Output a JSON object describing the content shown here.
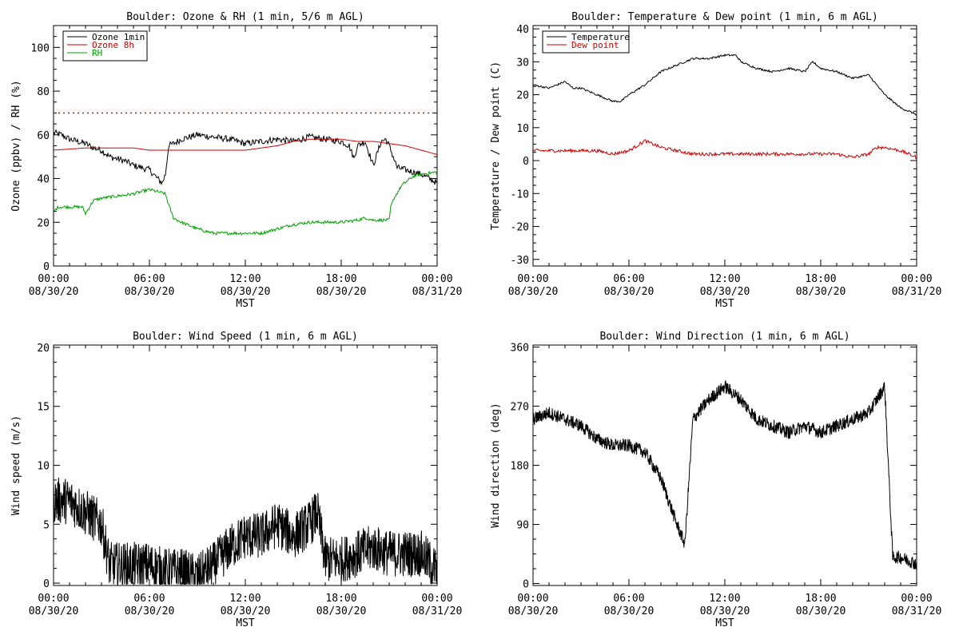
{
  "colors": {
    "black": "#000000",
    "red": "#cc0000",
    "green": "#00a000",
    "background": "#ffffff"
  },
  "chart_data": [
    {
      "type": "line",
      "title": "Boulder: Ozone & RH (1 min, 5/6 m AGL)",
      "xlabel": "MST",
      "ylabel": "Ozone (ppbv) / RH (%)",
      "xlim_hours": [
        0,
        24
      ],
      "ylim": [
        0,
        110
      ],
      "yticks": [
        0,
        20,
        40,
        60,
        80,
        100
      ],
      "xtick_labels": [
        {
          "h": 0,
          "time": "00:00",
          "date": "08/30/20"
        },
        {
          "h": 6,
          "time": "06:00",
          "date": "08/30/20"
        },
        {
          "h": 12,
          "time": "12:00",
          "date": "08/30/20"
        },
        {
          "h": 18,
          "time": "18:00",
          "date": "08/30/20"
        },
        {
          "h": 24,
          "time": "00:00",
          "date": "08/31/20"
        }
      ],
      "legend": {
        "position": "top-left"
      },
      "reference_line": {
        "value": 70,
        "style": "dotted",
        "color": "#cc0000"
      },
      "series": [
        {
          "name": "Ozone 1min",
          "color": "#000000",
          "noise": 1.5,
          "step_hours": 0.05,
          "x": [
            0,
            0.5,
            1,
            1.5,
            2,
            2.5,
            3,
            3.5,
            4,
            4.5,
            5,
            5.5,
            6,
            6.5,
            6.8,
            7,
            7.2,
            7.5,
            8,
            9,
            10,
            11,
            12,
            13,
            14,
            15,
            16,
            17,
            18,
            18.5,
            18.8,
            19,
            19.5,
            20,
            20.5,
            20.8,
            21,
            21.5,
            22,
            23,
            24
          ],
          "y": [
            61,
            60,
            58,
            57,
            56,
            54,
            53,
            50,
            49,
            48,
            46,
            45,
            44,
            40,
            38,
            42,
            55,
            56,
            58,
            60,
            59,
            58,
            56,
            57,
            58,
            57,
            59,
            58,
            57,
            55,
            49,
            55,
            57,
            46,
            57,
            58,
            55,
            45,
            44,
            42,
            38
          ]
        },
        {
          "name": "Ozone 8h",
          "color": "#cc0000",
          "noise": 0,
          "step_hours": 0.1,
          "x": [
            0,
            2,
            3,
            4,
            5,
            6,
            7,
            8,
            9,
            10,
            11,
            12,
            13,
            14,
            15,
            16,
            17,
            18,
            19,
            20,
            21,
            22,
            23,
            24
          ],
          "y": [
            53,
            54,
            54,
            54,
            54,
            53,
            53,
            53,
            53,
            53,
            53,
            53,
            54,
            55,
            57,
            58,
            58,
            58,
            57,
            57,
            56,
            55,
            53,
            51
          ]
        },
        {
          "name": "RH",
          "color": "#00a000",
          "noise": 0.7,
          "step_hours": 0.05,
          "x": [
            0,
            0.3,
            1,
            1.8,
            2,
            2.5,
            3,
            4,
            5,
            6,
            6.5,
            7,
            7.2,
            7.5,
            8,
            9,
            10,
            11,
            12,
            13,
            14,
            15,
            16,
            17,
            18,
            19,
            19.5,
            20,
            21,
            21.1,
            21.3,
            21.8,
            22.5,
            23,
            24
          ],
          "y": [
            25,
            27,
            27,
            27,
            24,
            30,
            31,
            32,
            33,
            35,
            34,
            33,
            28,
            22,
            20,
            17,
            15,
            15,
            15,
            15,
            17,
            19,
            20,
            20,
            20,
            21,
            22,
            21,
            21,
            27,
            31,
            37,
            41,
            42,
            43
          ]
        }
      ]
    },
    {
      "type": "line",
      "title": "Boulder: Temperature & Dew point (1 min, 6 m AGL)",
      "xlabel": "MST",
      "ylabel": "Temperature / Dew point (C)",
      "xlim_hours": [
        0,
        24
      ],
      "ylim": [
        -32,
        41
      ],
      "yticks": [
        -30,
        -20,
        -10,
        0,
        10,
        20,
        30,
        40
      ],
      "xtick_labels": [
        {
          "h": 0,
          "time": "00:00",
          "date": "08/30/20"
        },
        {
          "h": 6,
          "time": "06:00",
          "date": "08/30/20"
        },
        {
          "h": 12,
          "time": "12:00",
          "date": "08/30/20"
        },
        {
          "h": 18,
          "time": "18:00",
          "date": "08/30/20"
        },
        {
          "h": 24,
          "time": "00:00",
          "date": "08/31/20"
        }
      ],
      "legend": {
        "position": "top-left"
      },
      "series": [
        {
          "name": "Temperature",
          "color": "#000000",
          "noise": 0.3,
          "step_hours": 0.05,
          "x": [
            0,
            1,
            2,
            2.5,
            3,
            4,
            5,
            5.5,
            6,
            7,
            7.5,
            8,
            9,
            10,
            11,
            12,
            12.7,
            13,
            14,
            15,
            16,
            17,
            17.5,
            18,
            19,
            20,
            21,
            22,
            23,
            24
          ],
          "y": [
            23,
            22,
            24,
            22,
            22,
            20,
            18,
            18,
            20,
            23,
            25,
            27,
            29,
            31,
            31,
            32,
            32,
            30,
            28,
            27,
            28,
            27,
            30,
            28,
            27,
            25,
            26,
            20,
            16,
            14
          ]
        },
        {
          "name": "Dew point",
          "color": "#cc0000",
          "noise": 0.5,
          "step_hours": 0.05,
          "x": [
            0,
            2,
            4,
            5,
            6,
            7,
            7.5,
            8,
            9,
            10,
            11,
            12,
            13,
            14,
            15,
            16,
            17,
            18,
            19,
            20,
            21,
            21.5,
            22,
            23,
            24
          ],
          "y": [
            3,
            3,
            3,
            2,
            3,
            6,
            5,
            4,
            3,
            2,
            2,
            2,
            2,
            2,
            2,
            2,
            2,
            2,
            2,
            1,
            2,
            4,
            4,
            3,
            1
          ]
        }
      ]
    },
    {
      "type": "line",
      "title": "Boulder: Wind Speed (1 min, 6 m AGL)",
      "xlabel": "MST",
      "ylabel": "Wind speed (m/s)",
      "xlim_hours": [
        0,
        24
      ],
      "ylim": [
        -0.2,
        20.2
      ],
      "yticks": [
        0,
        5,
        10,
        15,
        20
      ],
      "xtick_labels": [
        {
          "h": 0,
          "time": "00:00",
          "date": "08/30/20"
        },
        {
          "h": 6,
          "time": "06:00",
          "date": "08/30/20"
        },
        {
          "h": 12,
          "time": "12:00",
          "date": "08/30/20"
        },
        {
          "h": 18,
          "time": "18:00",
          "date": "08/30/20"
        },
        {
          "h": 24,
          "time": "00:00",
          "date": "08/31/20"
        }
      ],
      "series": [
        {
          "name": "",
          "color": "#000000",
          "noise": 2.0,
          "step_hours": 0.02,
          "x": [
            0,
            1,
            2,
            3,
            3.5,
            4,
            5,
            6,
            7,
            8,
            9,
            10,
            11,
            12,
            13,
            14,
            15,
            16,
            16.5,
            17,
            18,
            19,
            20,
            21,
            22,
            23,
            24
          ],
          "y": [
            7,
            7,
            6,
            5,
            1.5,
            1.5,
            1.5,
            1.5,
            1,
            1,
            0.5,
            1.5,
            3,
            4,
            4,
            5,
            4,
            5,
            6,
            2,
            2,
            2.5,
            3,
            2.5,
            2.5,
            2.5,
            1
          ]
        }
      ]
    },
    {
      "type": "line",
      "title": "Boulder: Wind Direction (1 min, 6 m AGL)",
      "xlabel": "MST",
      "ylabel": "Wind direction (deg)",
      "xlim_hours": [
        0,
        24
      ],
      "ylim": [
        -3,
        363
      ],
      "yticks": [
        0,
        90,
        180,
        270,
        360
      ],
      "xtick_labels": [
        {
          "h": 0,
          "time": "00:00",
          "date": "08/30/20"
        },
        {
          "h": 6,
          "time": "06:00",
          "date": "08/30/20"
        },
        {
          "h": 12,
          "time": "12:00",
          "date": "08/30/20"
        },
        {
          "h": 18,
          "time": "18:00",
          "date": "08/30/20"
        },
        {
          "h": 24,
          "time": "00:00",
          "date": "08/31/20"
        }
      ],
      "series": [
        {
          "name": "",
          "color": "#000000",
          "noise": 10,
          "step_hours": 0.02,
          "x": [
            0,
            1,
            2,
            3,
            4,
            5,
            6,
            7,
            8,
            9,
            9.5,
            10,
            11,
            12,
            13,
            14,
            15,
            16,
            17,
            18,
            19,
            20,
            21,
            22,
            22.5,
            23,
            24
          ],
          "y": [
            250,
            260,
            250,
            240,
            220,
            210,
            210,
            200,
            160,
            90,
            60,
            250,
            280,
            300,
            280,
            250,
            240,
            230,
            240,
            230,
            240,
            250,
            260,
            300,
            40,
            40,
            30
          ]
        }
      ]
    }
  ]
}
